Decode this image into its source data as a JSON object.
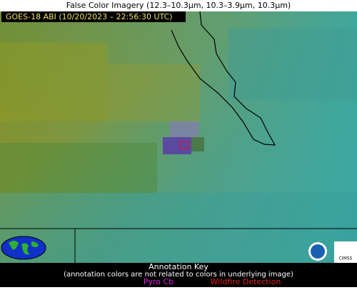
{
  "header": {
    "title": "False Color Imagery (12.3–10.3µm, 10.3–3.9µm, 10.3µm)"
  },
  "image": {
    "label": "GOES-18 ABI (10/20/2023 – 22:56:30 UTC)"
  },
  "legend": {
    "title": "Annotation Key",
    "note": "(annotation colors are not related to colors in underlying image)",
    "items": [
      "Pyro Cb",
      "Wildfire Detection"
    ]
  },
  "logos": [
    "CIMSS"
  ]
}
